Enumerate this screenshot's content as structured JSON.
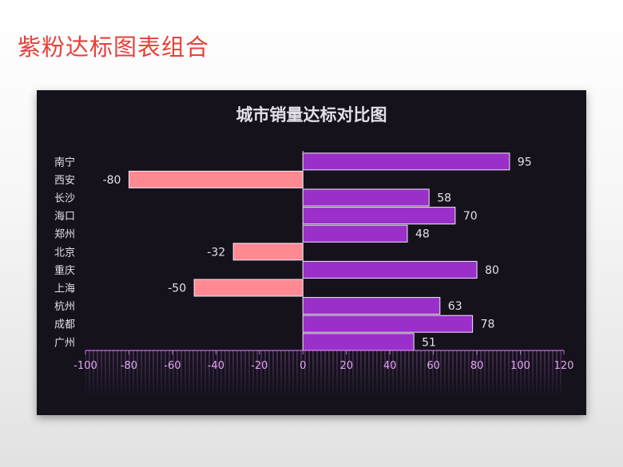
{
  "slide": {
    "title": "紫粉达标图表组合"
  },
  "colors": {
    "positive": "#9a2fc9",
    "negative": "#ff8a92",
    "axis": "#c36be0",
    "text": "#e4e0ea",
    "panel": "#15121c"
  },
  "chart_data": {
    "type": "bar",
    "orientation": "horizontal",
    "title": "城市销量达标对比图",
    "categories": [
      "南宁",
      "西安",
      "长沙",
      "海口",
      "郑州",
      "北京",
      "重庆",
      "上海",
      "杭州",
      "成都",
      "广州"
    ],
    "values": [
      95,
      -80,
      58,
      70,
      48,
      -32,
      80,
      -50,
      63,
      78,
      51
    ],
    "xlim": [
      -100,
      120
    ],
    "xticks": [
      -100,
      -80,
      -60,
      -40,
      -20,
      0,
      20,
      40,
      60,
      80,
      100,
      120
    ],
    "grid": false,
    "legend": "none"
  }
}
